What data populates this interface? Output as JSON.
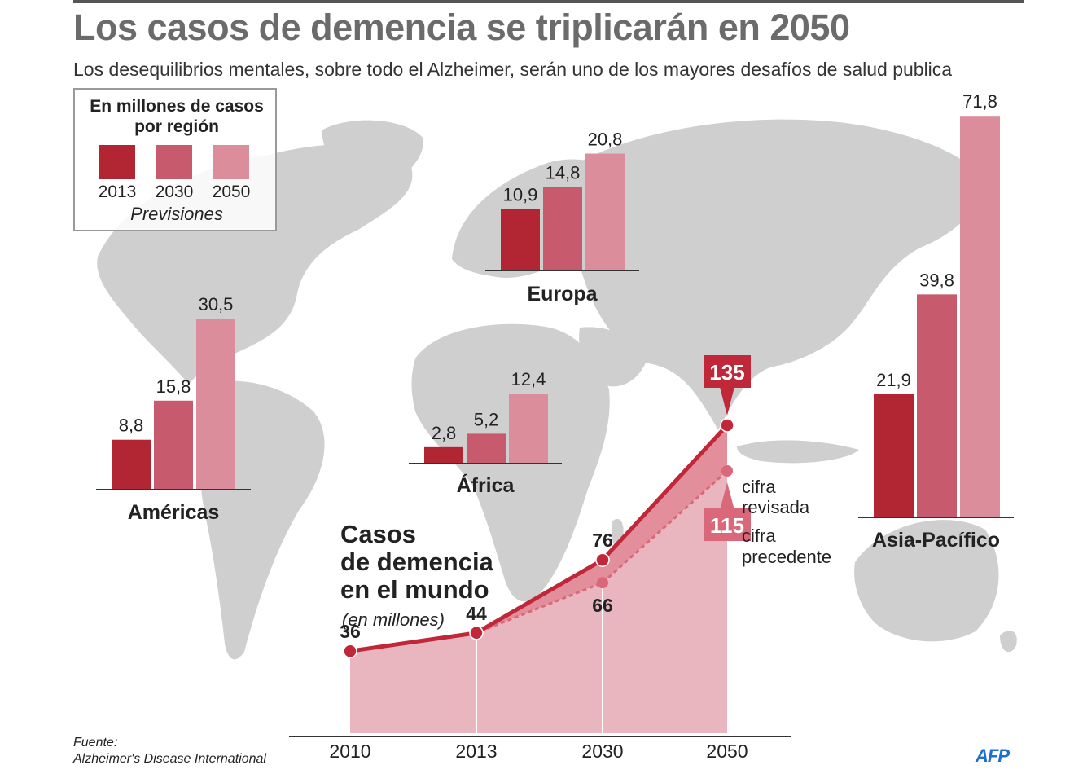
{
  "title": "Los casos de demencia se triplicarán en 2050",
  "subtitle": "Los desequilibrios mentales, sobre todo el Alzheimer, serán uno de los mayores desafíos de salud publica",
  "legend": {
    "title_line1": "En millones de casos",
    "title_line2": "por región",
    "years": [
      "2013",
      "2030",
      "2050"
    ],
    "note": "Previsiones"
  },
  "colors": {
    "2013": "#b22532",
    "2030": "#c75a6c",
    "2050": "#dc8d9b",
    "map": "#cfcfcf",
    "line_revised": "#c0283a",
    "line_previous": "#d9697a",
    "area": "#e9b6c0"
  },
  "source_label": "Fuente:",
  "source_text": "Alzheimer's Disease International",
  "logo": "AFP",
  "chart_data": [
    {
      "type": "bar",
      "title": "En millones de casos por región",
      "series_names": [
        "2013",
        "2030",
        "2050"
      ],
      "regions": [
        {
          "name": "Américas",
          "values": [
            8.8,
            15.8,
            30.5
          ],
          "labels": [
            "8,8",
            "15,8",
            "30,5"
          ]
        },
        {
          "name": "Europa",
          "values": [
            10.9,
            14.8,
            20.8
          ],
          "labels": [
            "10,9",
            "14,8",
            "20,8"
          ]
        },
        {
          "name": "África",
          "values": [
            2.8,
            5.2,
            12.4
          ],
          "labels": [
            "2,8",
            "5,2",
            "12,4"
          ]
        },
        {
          "name": "Asia-Pacífico",
          "values": [
            21.9,
            39.8,
            71.8
          ],
          "labels": [
            "21,9",
            "39,8",
            "71,8"
          ]
        }
      ]
    },
    {
      "type": "line",
      "title_lines": [
        "Casos",
        "de demencia",
        "en el mundo"
      ],
      "unit": "(en millones)",
      "x": [
        "2010",
        "2013",
        "2030",
        "2050"
      ],
      "series": [
        {
          "name": "cifra revisada",
          "name_lines": [
            "cifra",
            "revisada"
          ],
          "values": [
            36,
            44,
            76,
            135
          ],
          "labels": [
            "36",
            "44",
            "76",
            "135"
          ]
        },
        {
          "name": "cifra precedente",
          "name_lines": [
            "cifra",
            "precedente"
          ],
          "values": [
            36,
            44,
            66,
            115
          ],
          "labels": [
            "",
            "",
            "66",
            "115"
          ]
        }
      ]
    }
  ]
}
